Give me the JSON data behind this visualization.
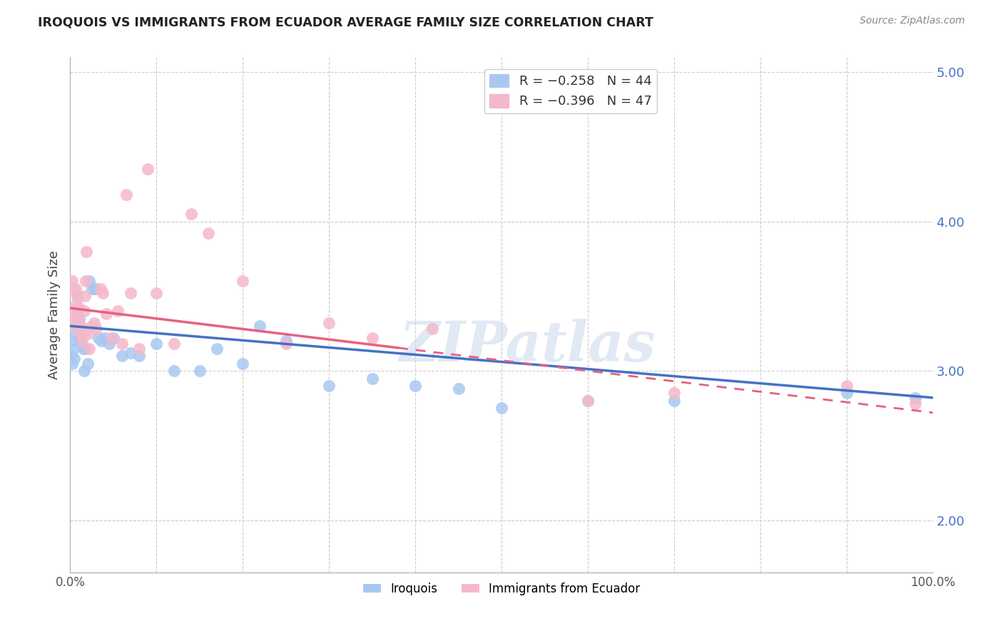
{
  "title": "IROQUOIS VS IMMIGRANTS FROM ECUADOR AVERAGE FAMILY SIZE CORRELATION CHART",
  "source": "Source: ZipAtlas.com",
  "ylabel": "Average Family Size",
  "right_yticks": [
    2.0,
    3.0,
    4.0,
    5.0
  ],
  "legend_labels_top": [
    {
      "label": "R = -0.258   N = 44",
      "color": "#a8c8f0"
    },
    {
      "label": "R = -0.396   N = 47",
      "color": "#f5b8cb"
    }
  ],
  "legend_labels_bottom": [
    "Iroquois",
    "Immigrants from Ecuador"
  ],
  "iroquois_color": "#a8c8f0",
  "ecuador_color": "#f5b8cb",
  "trend_iroquois_color": "#4472c4",
  "trend_ecuador_color": "#e86080",
  "watermark": "ZIPatlas",
  "iroquois_x": [
    0.001,
    0.002,
    0.003,
    0.004,
    0.005,
    0.006,
    0.007,
    0.008,
    0.009,
    0.01,
    0.011,
    0.013,
    0.015,
    0.016,
    0.018,
    0.02,
    0.022,
    0.025,
    0.028,
    0.03,
    0.033,
    0.036,
    0.04,
    0.045,
    0.05,
    0.06,
    0.07,
    0.08,
    0.1,
    0.12,
    0.15,
    0.17,
    0.2,
    0.22,
    0.25,
    0.3,
    0.35,
    0.4,
    0.45,
    0.5,
    0.6,
    0.7,
    0.9,
    0.98
  ],
  "iroquois_y": [
    3.1,
    3.05,
    3.2,
    3.15,
    3.08,
    3.25,
    3.3,
    3.42,
    3.5,
    3.35,
    3.2,
    3.28,
    3.15,
    3.0,
    3.15,
    3.05,
    3.6,
    3.55,
    3.55,
    3.55,
    3.22,
    3.2,
    3.22,
    3.18,
    3.22,
    3.1,
    3.12,
    3.1,
    3.18,
    3.0,
    3.0,
    3.15,
    3.05,
    3.3,
    3.2,
    2.9,
    2.95,
    2.9,
    2.88,
    2.75,
    2.8,
    2.8,
    2.85,
    2.82
  ],
  "ecuador_x": [
    0.001,
    0.002,
    0.003,
    0.004,
    0.005,
    0.006,
    0.007,
    0.008,
    0.009,
    0.01,
    0.011,
    0.012,
    0.013,
    0.014,
    0.015,
    0.016,
    0.017,
    0.018,
    0.019,
    0.02,
    0.022,
    0.025,
    0.028,
    0.03,
    0.035,
    0.038,
    0.042,
    0.048,
    0.055,
    0.06,
    0.065,
    0.07,
    0.08,
    0.09,
    0.1,
    0.12,
    0.14,
    0.16,
    0.2,
    0.25,
    0.3,
    0.35,
    0.42,
    0.6,
    0.7,
    0.9,
    0.98
  ],
  "ecuador_y": [
    3.55,
    3.6,
    3.3,
    3.4,
    3.35,
    3.55,
    3.45,
    3.5,
    3.35,
    3.42,
    3.3,
    3.3,
    3.25,
    3.2,
    3.25,
    3.4,
    3.5,
    3.6,
    3.8,
    3.25,
    3.15,
    3.3,
    3.32,
    3.28,
    3.55,
    3.52,
    3.38,
    3.22,
    3.4,
    3.18,
    4.18,
    3.52,
    3.15,
    4.35,
    3.52,
    3.18,
    4.05,
    3.92,
    3.6,
    3.18,
    3.32,
    3.22,
    3.28,
    2.8,
    2.85,
    2.9,
    2.78
  ],
  "xlim": [
    0.0,
    1.0
  ],
  "ylim": [
    1.65,
    5.1
  ],
  "trend_iroquois_x0": 0.0,
  "trend_iroquois_x1": 1.0,
  "trend_iroquois_y0": 3.3,
  "trend_iroquois_y1": 2.82,
  "trend_ecuador_solid_x0": 0.0,
  "trend_ecuador_solid_x1": 0.38,
  "trend_ecuador_dashed_x0": 0.38,
  "trend_ecuador_dashed_x1": 1.0,
  "trend_ecuador_y0": 3.42,
  "trend_ecuador_y1": 2.72,
  "figsize": [
    14.06,
    8.92
  ],
  "dpi": 100
}
